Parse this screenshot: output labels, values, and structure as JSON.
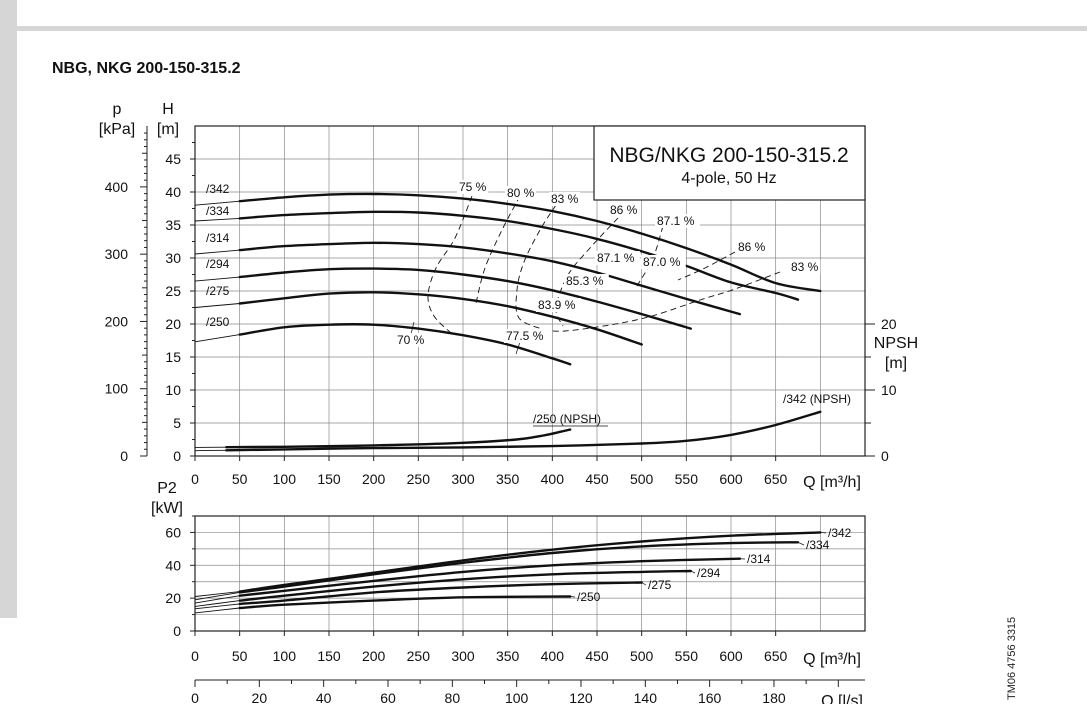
{
  "page_title": "NBG, NKG 200-150-315.2",
  "doc_code": "TM06 4756 3315",
  "colors": {
    "background": "#ffffff",
    "curve": "#111111",
    "grid": "#8a8a8a",
    "sidebar": "#d6d6d6"
  },
  "chart_data": [
    {
      "type": "line",
      "id": "head",
      "legend_box": {
        "title": "NBG/NKG 200-150-315.2",
        "subtitle": "4-pole, 50 Hz"
      },
      "xlabel": "Q [m³/h]",
      "x_ticks": [
        0,
        50,
        100,
        150,
        200,
        250,
        300,
        350,
        400,
        450,
        500,
        550,
        600,
        650
      ],
      "xlim": [
        0,
        750
      ],
      "ylabel_left": "p\n[kPa]",
      "p_ticks": [
        0,
        100,
        200,
        300,
        400
      ],
      "ylabel": "H\n[m]",
      "ylim": [
        0,
        50
      ],
      "y_ticks": [
        0,
        5,
        10,
        15,
        20,
        25,
        30,
        35,
        40,
        45
      ],
      "ylabel_right": "NPSH\n[m]",
      "npsh_ticks": [
        0,
        10,
        20
      ],
      "npsh_lim": [
        0,
        50
      ],
      "grid": true,
      "series": [
        {
          "name": "/342",
          "x": [
            0,
            50,
            100,
            150,
            200,
            250,
            300,
            350,
            400,
            450,
            500,
            550,
            600,
            650,
            700
          ],
          "y": [
            38.0,
            38.6,
            39.2,
            39.6,
            39.7,
            39.5,
            39.0,
            38.2,
            37.1,
            35.6,
            33.7,
            31.5,
            29.0,
            26.2,
            25.0
          ]
        },
        {
          "name": "/334",
          "x": [
            0,
            50,
            100,
            150,
            200,
            250,
            300,
            350,
            400,
            450,
            500,
            550,
            600,
            650,
            675
          ],
          "y": [
            35.6,
            36.0,
            36.5,
            36.8,
            37.0,
            36.9,
            36.4,
            35.6,
            34.4,
            32.9,
            31.0,
            28.8,
            26.3,
            24.7,
            23.7
          ]
        },
        {
          "name": "/314",
          "x": [
            0,
            50,
            100,
            150,
            200,
            250,
            300,
            350,
            400,
            450,
            500,
            550,
            610
          ],
          "y": [
            30.6,
            31.2,
            31.8,
            32.1,
            32.3,
            32.1,
            31.6,
            30.7,
            29.5,
            27.8,
            25.8,
            23.8,
            21.5
          ]
        },
        {
          "name": "/294",
          "x": [
            0,
            50,
            100,
            150,
            200,
            250,
            300,
            350,
            400,
            450,
            500,
            555
          ],
          "y": [
            26.5,
            27.1,
            27.8,
            28.3,
            28.4,
            28.2,
            27.5,
            26.5,
            25.1,
            23.4,
            21.5,
            19.3
          ]
        },
        {
          "name": "/275",
          "x": [
            0,
            50,
            100,
            150,
            200,
            250,
            300,
            350,
            400,
            450,
            500
          ],
          "y": [
            22.5,
            23.1,
            23.9,
            24.6,
            24.8,
            24.5,
            23.8,
            22.7,
            21.1,
            19.2,
            16.9
          ]
        },
        {
          "name": "/250",
          "x": [
            0,
            50,
            100,
            150,
            200,
            250,
            300,
            350,
            400,
            420
          ],
          "y": [
            17.3,
            18.4,
            19.5,
            19.9,
            19.9,
            19.3,
            18.3,
            16.9,
            14.8,
            13.9
          ]
        },
        {
          "name": "/250 (NPSH)",
          "x": [
            0,
            100,
            200,
            300,
            360,
            390,
            410,
            420
          ],
          "y": [
            1.3,
            1.4,
            1.6,
            2.0,
            2.5,
            3.1,
            3.7,
            4.0
          ]
        },
        {
          "name": "/342 (NPSH)",
          "x": [
            0,
            100,
            200,
            300,
            400,
            500,
            550,
            600,
            650,
            700
          ],
          "y": [
            0.8,
            1.0,
            1.2,
            1.3,
            1.5,
            1.9,
            2.3,
            3.2,
            4.7,
            6.7
          ]
        }
      ],
      "efficiency_labels": [
        "70 %",
        "75 %",
        "77.5 %",
        "80 %",
        "83 %",
        "83.9 %",
        "85.3 %",
        "86 %",
        "87.1 %",
        "87.1 %",
        "87.0 %",
        "86 %",
        "83 %"
      ]
    },
    {
      "type": "line",
      "id": "power",
      "ylabel": "P2\n[kW]",
      "y_ticks": [
        0,
        20,
        40,
        60
      ],
      "ylim": [
        0,
        70
      ],
      "xlabel": "Q [m³/h]",
      "x_ticks": [
        0,
        50,
        100,
        150,
        200,
        250,
        300,
        350,
        400,
        450,
        500,
        550,
        600,
        650
      ],
      "xlim": [
        0,
        750
      ],
      "grid": true,
      "series": [
        {
          "name": "/342",
          "x": [
            0,
            50,
            100,
            200,
            300,
            400,
            500,
            600,
            700
          ],
          "y": [
            21.0,
            24.0,
            28.0,
            35.5,
            43.0,
            49.5,
            54.5,
            58.0,
            60.0
          ]
        },
        {
          "name": "/334",
          "x": [
            0,
            50,
            100,
            200,
            300,
            400,
            500,
            600,
            675
          ],
          "y": [
            19.0,
            23.5,
            27.0,
            34.5,
            41.5,
            47.5,
            51.5,
            53.5,
            54.0
          ]
        },
        {
          "name": "/314",
          "x": [
            0,
            50,
            100,
            200,
            300,
            400,
            500,
            610
          ],
          "y": [
            17.0,
            21.5,
            24.5,
            30.5,
            36.0,
            40.0,
            42.5,
            44.0
          ]
        },
        {
          "name": "/294",
          "x": [
            0,
            50,
            100,
            200,
            300,
            400,
            500,
            555
          ],
          "y": [
            15.0,
            18.5,
            21.5,
            27.0,
            31.5,
            34.5,
            36.0,
            36.5
          ]
        },
        {
          "name": "/275",
          "x": [
            0,
            50,
            100,
            200,
            300,
            400,
            500
          ],
          "y": [
            13.5,
            16.5,
            18.5,
            23.5,
            26.5,
            28.5,
            29.5
          ]
        },
        {
          "name": "/250",
          "x": [
            0,
            50,
            100,
            200,
            300,
            420
          ],
          "y": [
            11.0,
            14.0,
            16.0,
            18.5,
            20.5,
            21.0
          ]
        }
      ]
    },
    {
      "type": "axis",
      "id": "flow-ls",
      "xlabel": "Q [l/s]",
      "x_ticks": [
        0,
        20,
        40,
        60,
        80,
        100,
        120,
        140,
        160,
        180
      ],
      "xlim": [
        0,
        208.3
      ]
    }
  ]
}
